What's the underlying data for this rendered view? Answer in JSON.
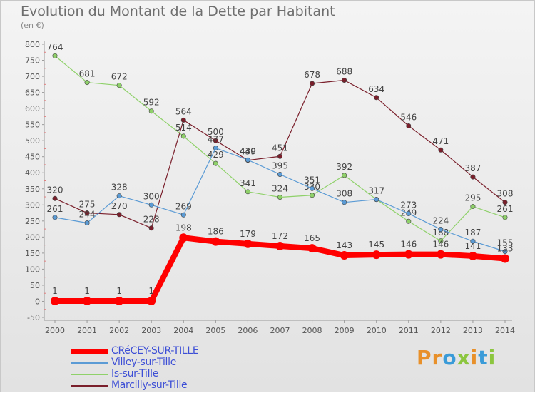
{
  "chart_data": {
    "type": "line",
    "title": "Evolution du Montant de la Dette par Habitant",
    "subtitle": "(en €)",
    "x": [
      "2000",
      "2001",
      "2002",
      "2003",
      "2004",
      "2005",
      "2006",
      "2007",
      "2008",
      "2009",
      "2010",
      "2011",
      "2012",
      "2013",
      "2014"
    ],
    "ylim": [
      -50,
      800
    ],
    "yticks": [
      -50,
      0,
      50,
      100,
      150,
      200,
      250,
      300,
      350,
      400,
      450,
      500,
      550,
      600,
      650,
      700,
      750,
      800
    ],
    "grid": false,
    "legend_position": "bottom-left",
    "series": [
      {
        "name": "CRéCEY-SUR-TILLE",
        "color": "#ff0000",
        "values": [
          1,
          1,
          1,
          1,
          198,
          186,
          179,
          172,
          165,
          143,
          145,
          146,
          146,
          141,
          133
        ]
      },
      {
        "name": "Villey-sur-Tille",
        "color": "#5b9bd5",
        "values": [
          261,
          244,
          328,
          300,
          269,
          477,
          440,
          395,
          351,
          308,
          317,
          273,
          224,
          187,
          155
        ]
      },
      {
        "name": "Is-sur-Tille",
        "color": "#8fd16a",
        "values": [
          764,
          681,
          672,
          592,
          514,
          429,
          341,
          324,
          330,
          392,
          317,
          249,
          188,
          295,
          261
        ]
      },
      {
        "name": "Marcilly-sur-Tille",
        "color": "#7a1f2b",
        "values": [
          320,
          275,
          270,
          228,
          564,
          500,
          439,
          451,
          678,
          688,
          634,
          546,
          471,
          387,
          308
        ]
      }
    ]
  },
  "brand": {
    "text": "Proxiti",
    "colors": [
      "#e8902a",
      "#3a9bd8",
      "#8cc63f"
    ]
  }
}
